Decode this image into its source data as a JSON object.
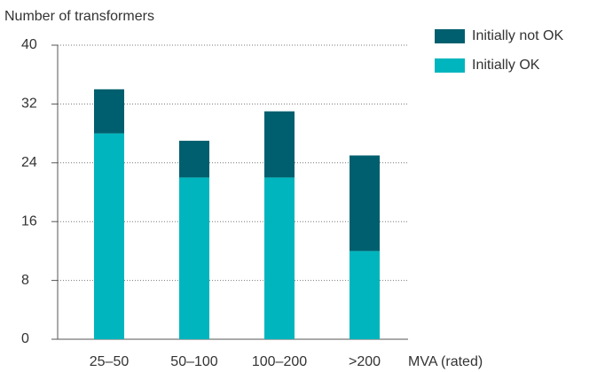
{
  "chart_data": {
    "type": "stacked_bar",
    "y_axis_label": "Number of transformers",
    "x_axis_label": "MVA (rated)",
    "categories": [
      "25–50",
      "50–100",
      "100–200",
      ">200"
    ],
    "series": [
      {
        "name": "Initially OK",
        "color": "#00b5bd",
        "values": [
          28,
          22,
          22,
          12
        ]
      },
      {
        "name": "Initially not OK",
        "color": "#005f6e",
        "values": [
          6,
          5,
          9,
          13
        ]
      }
    ],
    "ylim": [
      0,
      40
    ],
    "yticks": [
      0,
      8,
      16,
      24,
      32,
      40
    ],
    "grid": true,
    "legend": "top-right"
  }
}
